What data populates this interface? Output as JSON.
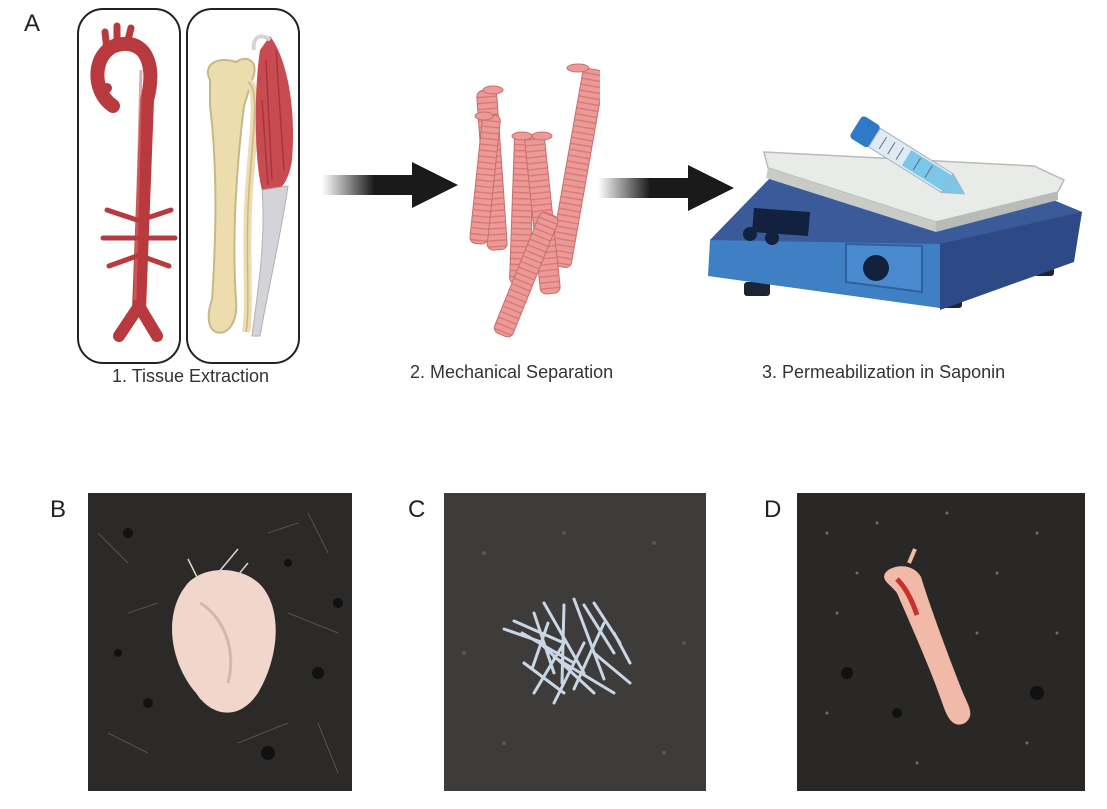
{
  "panels": {
    "a": {
      "letter": "A"
    },
    "b": {
      "letter": "B"
    },
    "c": {
      "letter": "C"
    },
    "d": {
      "letter": "D"
    }
  },
  "steps": [
    {
      "label": "1. Tissue Extraction"
    },
    {
      "label": "2. Mechanical Separation"
    },
    {
      "label": "3. Permeabilization in Saponin"
    }
  ],
  "colors": {
    "artery": "#b83a3e",
    "bone": "#ecdcae",
    "muscle": "#c94b52",
    "fiber": "#eb9a98",
    "arrow": "#1a1a1a",
    "shaker_body": "#2e4a86",
    "shaker_panel": "#3f7fc4",
    "plate": "#e9ebe8",
    "tube_cap": "#2f7ac6"
  }
}
